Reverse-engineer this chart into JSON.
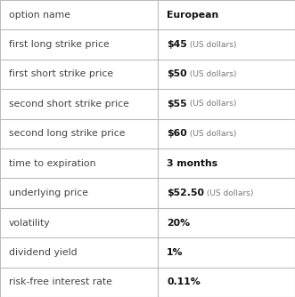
{
  "rows": [
    {
      "label": "option name",
      "value_bold": "European",
      "value_small": ""
    },
    {
      "label": "first long strike price",
      "value_bold": "$45",
      "value_small": " (US dollars)"
    },
    {
      "label": "first short strike price",
      "value_bold": "$50",
      "value_small": " (US dollars)"
    },
    {
      "label": "second short strike price",
      "value_bold": "$55",
      "value_small": " (US dollars)"
    },
    {
      "label": "second long strike price",
      "value_bold": "$60",
      "value_small": " (US dollars)"
    },
    {
      "label": "time to expiration",
      "value_bold": "3 months",
      "value_small": ""
    },
    {
      "label": "underlying price",
      "value_bold": "$52.50",
      "value_small": " (US dollars)"
    },
    {
      "label": "volatility",
      "value_bold": "20%",
      "value_small": ""
    },
    {
      "label": "dividend yield",
      "value_bold": "1%",
      "value_small": ""
    },
    {
      "label": "risk-free interest rate",
      "value_bold": "0.11%",
      "value_small": ""
    }
  ],
  "col_split": 0.535,
  "bg_color": "#ffffff",
  "border_color": "#bbbbbb",
  "label_fontsize": 7.8,
  "value_fontsize": 7.8,
  "small_fontsize": 6.5,
  "label_color": "#444444",
  "value_color": "#111111",
  "small_color": "#777777"
}
